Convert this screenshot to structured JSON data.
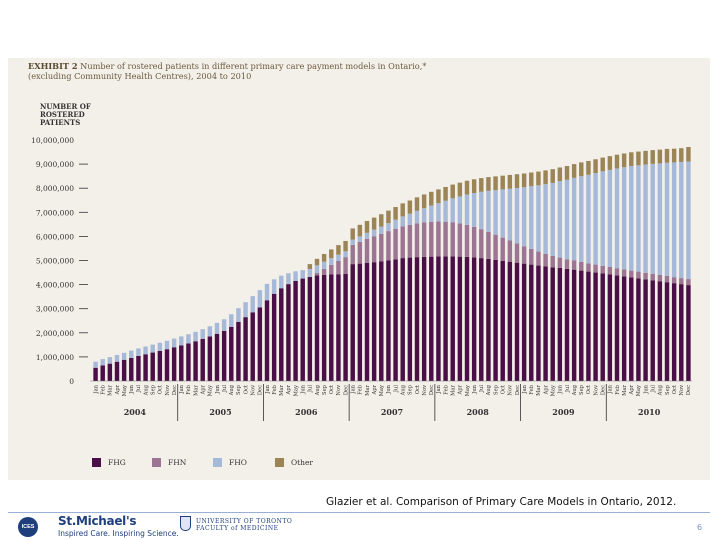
{
  "exhibit": {
    "title_bold": "EXHIBIT 2",
    "title_rest": "Number of rostered patients in different primary care payment models in Ontario,*",
    "subtitle": "(excluding Community Health Centres), 2004 to 2010"
  },
  "citation": "Glazier et al. Comparison of Primary Care Models in Ontario, 2012.",
  "footer": {
    "ices_label": "ICES",
    "stm_name": "St.Michael's",
    "stm_tagline": "Inspired Care. Inspiring Science.",
    "uoft_line1": "UNIVERSITY OF TORONTO",
    "uoft_line2": "FACULTY of MEDICINE",
    "slide_number": "6"
  },
  "colors": {
    "FHG": "#4b0f47",
    "FHN": "#9c7592",
    "FHO": "#a6b9d8",
    "Other": "#9b8556"
  },
  "chart_data": {
    "type": "bar",
    "stacked": true,
    "ylabel": "NUMBER OF ROSTERED PATIENTS",
    "ylim": [
      0,
      10000000
    ],
    "yticks": [
      "0",
      "1,000,000",
      "2,000,000",
      "3,000,000",
      "4,000,000",
      "5,000,000",
      "6,000,000",
      "7,000,000",
      "8,000,000",
      "9,000,000",
      "10,000,000"
    ],
    "years": [
      "2004",
      "2005",
      "2006",
      "2007",
      "2008",
      "2009",
      "2010"
    ],
    "month_labels": [
      "Jan",
      "Feb",
      "Mar",
      "Apr",
      "May",
      "Jun",
      "Jul",
      "Aug",
      "Sep",
      "Oct",
      "Nov",
      "Dec"
    ],
    "legend": [
      "FHG",
      "FHN",
      "FHO",
      "Other"
    ],
    "series": [
      {
        "name": "FHG",
        "values": [
          550000,
          650000,
          720000,
          800000,
          880000,
          960000,
          1040000,
          1110000,
          1180000,
          1250000,
          1320000,
          1400000,
          1480000,
          1560000,
          1650000,
          1750000,
          1850000,
          1960000,
          2080000,
          2250000,
          2450000,
          2650000,
          2850000,
          3050000,
          3350000,
          3620000,
          3850000,
          4020000,
          4150000,
          4250000,
          4320000,
          4380000,
          4400000,
          4420000,
          4430000,
          4440000,
          4850000,
          4870000,
          4900000,
          4930000,
          4960000,
          5000000,
          5050000,
          5100000,
          5120000,
          5140000,
          5150000,
          5160000,
          5170000,
          5170000,
          5170000,
          5160000,
          5150000,
          5130000,
          5100000,
          5070000,
          5030000,
          4990000,
          4950000,
          4910000,
          4870000,
          4830000,
          4790000,
          4760000,
          4720000,
          4690000,
          4650000,
          4620000,
          4580000,
          4540000,
          4500000,
          4460000,
          4420000,
          4380000,
          4340000,
          4300000,
          4260000,
          4220000,
          4180000,
          4140000,
          4100000,
          4060000,
          4020000,
          3980000
        ]
      },
      {
        "name": "FHN",
        "values": [
          0,
          0,
          0,
          0,
          0,
          0,
          0,
          0,
          0,
          0,
          0,
          0,
          0,
          0,
          0,
          0,
          0,
          0,
          0,
          0,
          0,
          0,
          0,
          0,
          0,
          0,
          0,
          0,
          0,
          0,
          0,
          100000,
          250000,
          400000,
          550000,
          700000,
          800000,
          900000,
          1000000,
          1080000,
          1150000,
          1220000,
          1270000,
          1320000,
          1360000,
          1400000,
          1430000,
          1450000,
          1450000,
          1440000,
          1420000,
          1380000,
          1330000,
          1270000,
          1200000,
          1120000,
          1040000,
          960000,
          880000,
          800000,
          720000,
          650000,
          580000,
          520000,
          470000,
          430000,
          400000,
          380000,
          360000,
          340000,
          330000,
          320000,
          310000,
          300000,
          290000,
          280000,
          280000,
          270000,
          270000,
          260000,
          260000,
          250000,
          250000,
          250000
        ]
      },
      {
        "name": "FHO",
        "values": [
          250000,
          260000,
          270000,
          280000,
          290000,
          300000,
          310000,
          320000,
          330000,
          340000,
          350000,
          360000,
          370000,
          380000,
          390000,
          400000,
          420000,
          450000,
          480000,
          520000,
          570000,
          620000,
          670000,
          720000,
          680000,
          600000,
          520000,
          450000,
          400000,
          350000,
          330000,
          320000,
          300000,
          280000,
          260000,
          240000,
          220000,
          230000,
          250000,
          270000,
          300000,
          330000,
          370000,
          410000,
          460000,
          520000,
          590000,
          670000,
          760000,
          870000,
          990000,
          1120000,
          1260000,
          1400000,
          1550000,
          1700000,
          1850000,
          2000000,
          2150000,
          2300000,
          2450000,
          2600000,
          2750000,
          2890000,
          3030000,
          3170000,
          3300000,
          3430000,
          3560000,
          3680000,
          3800000,
          3920000,
          4030000,
          4140000,
          4240000,
          4340000,
          4410000,
          4490000,
          4560000,
          4630000,
          4700000,
          4760000,
          4820000,
          4880000
        ]
      },
      {
        "name": "Other",
        "values": [
          0,
          0,
          0,
          0,
          0,
          0,
          0,
          0,
          0,
          0,
          0,
          0,
          0,
          0,
          0,
          0,
          0,
          0,
          0,
          0,
          0,
          0,
          0,
          0,
          0,
          0,
          0,
          0,
          0,
          0,
          200000,
          270000,
          320000,
          360000,
          400000,
          430000,
          460000,
          480000,
          490000,
          500000,
          510000,
          520000,
          530000,
          540000,
          550000,
          560000,
          570000,
          570000,
          570000,
          570000,
          570000,
          570000,
          570000,
          570000,
          570000,
          570000,
          570000,
          570000,
          570000,
          570000,
          570000,
          570000,
          570000,
          570000,
          570000,
          570000,
          570000,
          570000,
          570000,
          570000,
          570000,
          570000,
          570000,
          570000,
          570000,
          570000,
          570000,
          570000,
          570000,
          570000,
          570000,
          570000,
          570000,
          600000
        ]
      }
    ]
  }
}
